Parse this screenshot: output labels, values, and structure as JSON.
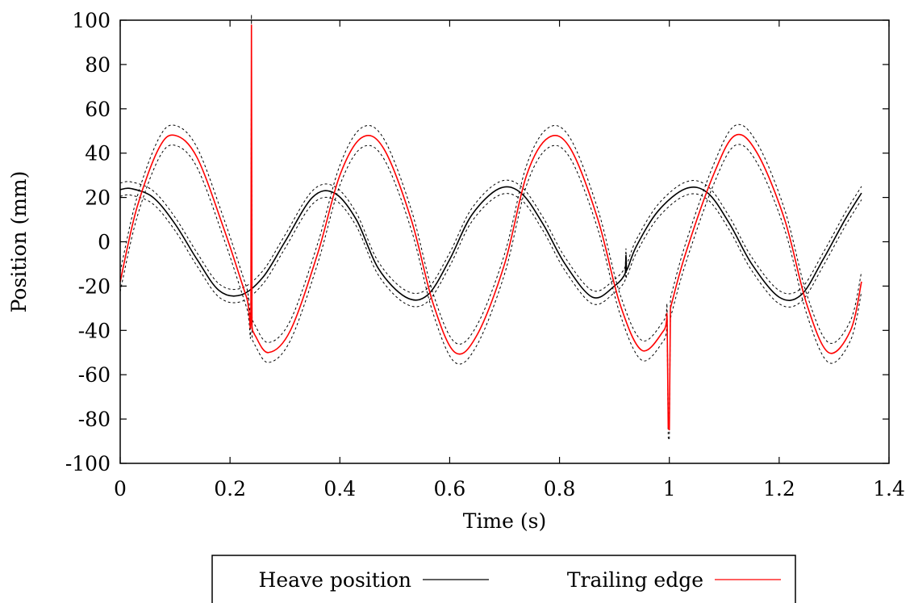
{
  "chart_data": {
    "type": "line",
    "xlabel": "Time (s)",
    "ylabel": "Position (mm)",
    "xlim": [
      0,
      1.4
    ],
    "ylim": [
      -100,
      100
    ],
    "x_ticks": [
      "0",
      "0.2",
      "0.4",
      "0.6",
      "0.8",
      "1",
      "1.2",
      "1.4"
    ],
    "y_ticks": [
      "-100",
      "-80",
      "-60",
      "-40",
      "-20",
      "0",
      "20",
      "40",
      "60",
      "80",
      "100"
    ],
    "x_tick_values": [
      0,
      0.2,
      0.4,
      0.6,
      0.8,
      1.0,
      1.2,
      1.4
    ],
    "y_tick_values": [
      -100,
      -80,
      -60,
      -40,
      -20,
      0,
      20,
      40,
      60,
      80,
      100
    ],
    "legend_position": "bottom, below plot",
    "series": [
      {
        "name": "Heave position",
        "color": "#000000",
        "style": "solid",
        "x": [
          0,
          0.02,
          0.06,
          0.1,
          0.14,
          0.18,
          0.22,
          0.26,
          0.3,
          0.35,
          0.39,
          0.43,
          0.47,
          0.52,
          0.56,
          0.6,
          0.64,
          0.69,
          0.73,
          0.77,
          0.81,
          0.86,
          0.9,
          0.92,
          0.921,
          0.922,
          0.94,
          0.98,
          1.03,
          1.07,
          1.11,
          1.15,
          1.2,
          1.24,
          1.28,
          1.32,
          1.35
        ],
        "y": [
          23.5,
          24,
          20,
          8,
          -8,
          -22,
          -24,
          -16,
          0,
          20,
          22,
          10,
          -12,
          -25,
          -24,
          -8,
          12,
          24,
          22,
          8,
          -10,
          -25,
          -20,
          -14,
          -6,
          -13,
          -2,
          14,
          24,
          22,
          8,
          -10,
          -25,
          -24,
          -8,
          10,
          22
        ],
        "band_offset": 3
      },
      {
        "name": "Trailing edge",
        "color": "#ff0000",
        "style": "solid",
        "x": [
          0,
          0.03,
          0.07,
          0.1,
          0.14,
          0.19,
          0.23,
          0.238,
          0.239,
          0.24,
          0.241,
          0.245,
          0.27,
          0.31,
          0.36,
          0.4,
          0.44,
          0.48,
          0.53,
          0.57,
          0.61,
          0.65,
          0.7,
          0.74,
          0.78,
          0.82,
          0.87,
          0.91,
          0.95,
          0.99,
          0.996,
          0.998,
          1.0,
          1.002,
          1.004,
          1.03,
          1.08,
          1.12,
          1.16,
          1.21,
          1.25,
          1.29,
          1.33,
          1.35
        ],
        "y": [
          -18,
          15,
          42,
          48,
          38,
          5,
          -25,
          -30,
          98,
          -38,
          -40,
          -42,
          -50,
          -40,
          -5,
          30,
          47,
          42,
          10,
          -28,
          -50,
          -42,
          -10,
          30,
          47,
          42,
          10,
          -28,
          -49,
          -40,
          -35,
          -84,
          -85,
          -30,
          -28,
          -5,
          30,
          48,
          40,
          10,
          -28,
          -50,
          -40,
          -18
        ],
        "band_offset": 4.5
      }
    ]
  }
}
